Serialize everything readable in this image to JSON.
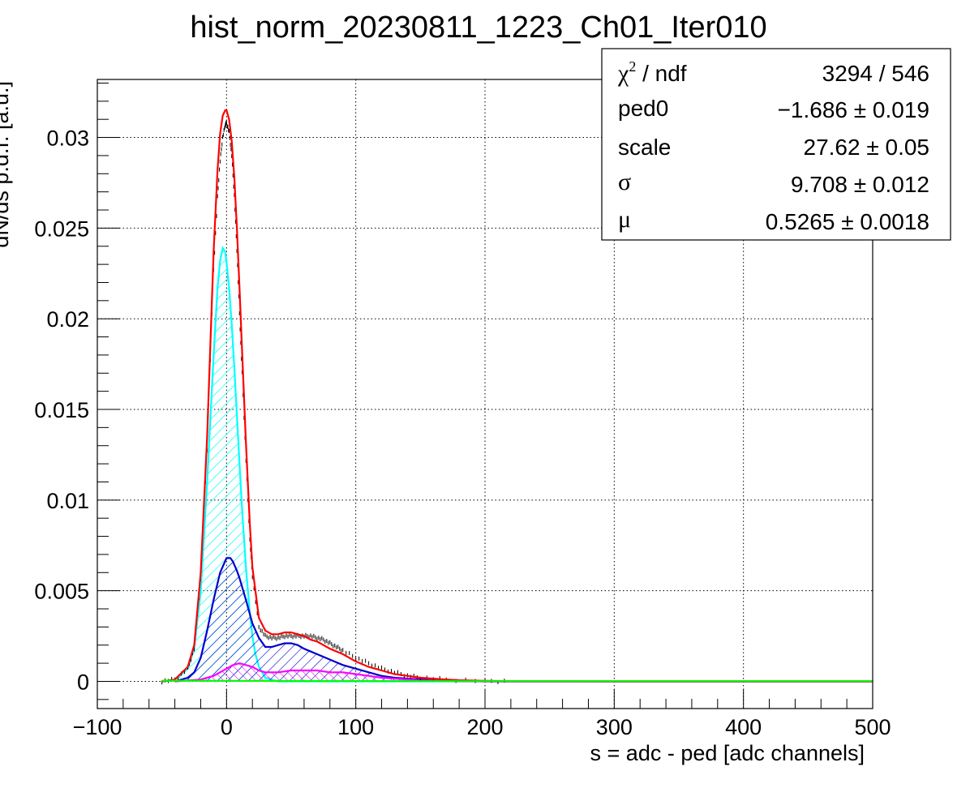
{
  "chart_data": {
    "type": "line",
    "title": "hist_norm_20230811_1223_Ch01_Iter010",
    "xlabel": "s = adc - ped [adc channels]",
    "ylabel": "dN/ds p.d.f. [a.u.]",
    "xlim": [
      -100,
      500
    ],
    "ylim": [
      -0.0015,
      0.0332
    ],
    "grid": true,
    "x_ticks": [
      "−100",
      "0",
      "100",
      "200",
      "300",
      "400",
      "500"
    ],
    "y_ticks": [
      "0",
      "0.005",
      "0.01",
      "0.015",
      "0.02",
      "0.025",
      "0.03"
    ],
    "series": [
      {
        "name": "",
        "color": "#000000",
        "style": "data-points",
        "x": [
          -50,
          -40,
          -30,
          -25,
          -20,
          -15,
          -10,
          -7,
          -5,
          -3,
          -1,
          0,
          2,
          4,
          6,
          8,
          10,
          12,
          15,
          18,
          20,
          25,
          30,
          35,
          40,
          45,
          50,
          55,
          60,
          65,
          70,
          75,
          80,
          85,
          90,
          100,
          110,
          120,
          130,
          140,
          150,
          170,
          200,
          220
        ],
        "y": [
          0,
          0.0001,
          0.0007,
          0.0018,
          0.0056,
          0.0128,
          0.0227,
          0.0267,
          0.0287,
          0.03,
          0.0307,
          0.0308,
          0.0303,
          0.029,
          0.0268,
          0.0238,
          0.0203,
          0.017,
          0.0122,
          0.0078,
          0.0058,
          0.003,
          0.0025,
          0.0024,
          0.0024,
          0.0025,
          0.0025,
          0.0025,
          0.0025,
          0.0025,
          0.0024,
          0.0023,
          0.0021,
          0.0019,
          0.0017,
          0.0013,
          0.001,
          0.0007,
          0.0005,
          0.0003,
          0.0002,
          0.0001,
          3e-05,
          0
        ]
      },
      {
        "name": "",
        "color": "#ff0000",
        "style": "line",
        "x": [
          -50,
          -40,
          -30,
          -25,
          -20,
          -15,
          -10,
          -7,
          -5,
          -3,
          -1,
          0,
          2,
          4,
          6,
          8,
          10,
          12,
          15,
          18,
          20,
          25,
          30,
          35,
          40,
          45,
          50,
          55,
          60,
          65,
          70,
          75,
          80,
          90,
          100,
          110,
          120,
          130,
          140,
          150,
          160,
          170,
          180,
          200,
          220,
          300,
          500
        ],
        "y": [
          0,
          0.0001,
          0.0008,
          0.002,
          0.006,
          0.0135,
          0.0237,
          0.0282,
          0.0302,
          0.0312,
          0.0315,
          0.0315,
          0.031,
          0.0298,
          0.0278,
          0.025,
          0.0217,
          0.0182,
          0.0132,
          0.0087,
          0.0063,
          0.0035,
          0.0028,
          0.0026,
          0.0026,
          0.0027,
          0.0027,
          0.0026,
          0.0025,
          0.0023,
          0.0022,
          0.002,
          0.0018,
          0.0015,
          0.0011,
          0.0008,
          0.0006,
          0.0004,
          0.0003,
          0.0002,
          0.00015,
          0.0001,
          6e-05,
          3e-05,
          1e-05,
          0,
          0
        ]
      },
      {
        "name": "",
        "color": "#00ffff",
        "style": "hatched-area",
        "x": [
          -50,
          -40,
          -30,
          -25,
          -20,
          -15,
          -10,
          -7,
          -5,
          -3,
          -1,
          0,
          2,
          4,
          6,
          8,
          10,
          12,
          15,
          18,
          20,
          22,
          25,
          30,
          40,
          50,
          500
        ],
        "y": [
          0,
          0.0001,
          0.0007,
          0.0018,
          0.005,
          0.011,
          0.018,
          0.0217,
          0.0232,
          0.0239,
          0.0237,
          0.0231,
          0.0217,
          0.0197,
          0.0173,
          0.0147,
          0.012,
          0.0095,
          0.0063,
          0.0038,
          0.0025,
          0.0016,
          0.0008,
          0.0002,
          0,
          0,
          0
        ]
      },
      {
        "name": "",
        "color": "#0000cc",
        "style": "hatched-area",
        "x": [
          -40,
          -30,
          -25,
          -20,
          -15,
          -10,
          -5,
          0,
          3,
          5,
          8,
          10,
          15,
          20,
          25,
          30,
          35,
          40,
          45,
          50,
          55,
          60,
          70,
          80,
          90,
          100,
          110,
          120,
          130,
          140,
          150,
          160,
          170,
          180,
          200,
          300,
          500
        ],
        "y": [
          0,
          0.0002,
          0.0005,
          0.0013,
          0.0028,
          0.0045,
          0.006,
          0.0068,
          0.0068,
          0.0066,
          0.0061,
          0.0057,
          0.0045,
          0.0032,
          0.0024,
          0.0019,
          0.0019,
          0.002,
          0.0021,
          0.0021,
          0.002,
          0.0018,
          0.0015,
          0.0012,
          0.0009,
          0.0007,
          0.0005,
          0.0003,
          0.0002,
          0.00015,
          0.0001,
          6e-05,
          4e-05,
          2e-05,
          0,
          0,
          0
        ]
      },
      {
        "name": "",
        "color": "#ff00ff",
        "style": "hatched-area",
        "x": [
          -40,
          -20,
          -10,
          0,
          5,
          10,
          15,
          20,
          25,
          30,
          40,
          50,
          60,
          70,
          80,
          90,
          100,
          110,
          120,
          130,
          140,
          150,
          170,
          200,
          500
        ],
        "y": [
          0,
          0.0001,
          0.0003,
          0.0007,
          0.0009,
          0.001,
          0.0009,
          0.0008,
          0.0006,
          0.0005,
          0.0005,
          0.0006,
          0.0006,
          0.0006,
          0.0005,
          0.0005,
          0.0004,
          0.0003,
          0.0002,
          0.00015,
          0.0001,
          5e-05,
          2e-05,
          0,
          0
        ]
      },
      {
        "name": "",
        "color": "#00ff00",
        "style": "line",
        "x": [
          -50,
          0,
          50,
          100,
          150,
          200,
          300,
          400,
          500
        ],
        "y": [
          4e-05,
          3e-05,
          2e-05,
          2e-05,
          1e-05,
          1e-05,
          1e-05,
          1e-05,
          1e-05
        ]
      }
    ]
  },
  "stats": {
    "rows": [
      {
        "label_html": "chi2",
        "label": "χ",
        "label_sup": "2",
        "label_rest": " / ndf",
        "value": "3294 / 546"
      },
      {
        "label": "ped0",
        "value": "−1.686 ± 0.019"
      },
      {
        "label": "scale",
        "value": "27.62 ± 0.05"
      },
      {
        "label": "σ",
        "value": "9.708 ± 0.012"
      },
      {
        "label": "μ",
        "value": "0.5265 ± 0.0018"
      }
    ]
  }
}
